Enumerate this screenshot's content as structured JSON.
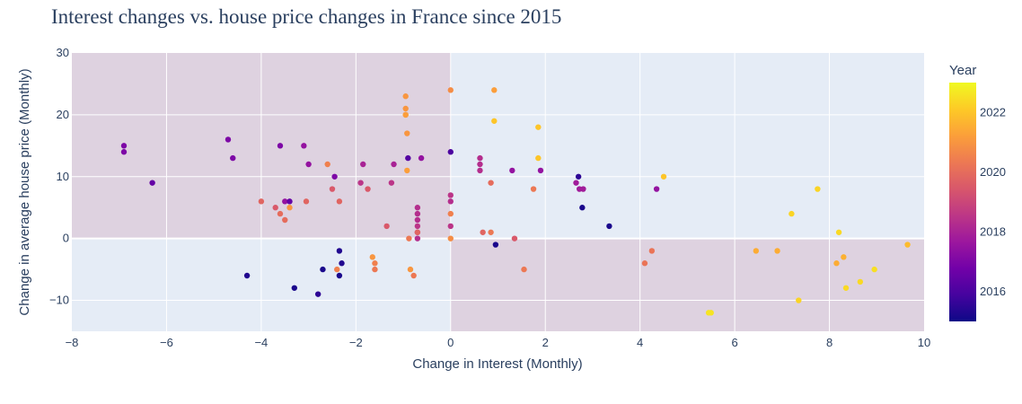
{
  "chart_data": {
    "type": "scatter",
    "title": "Interest changes vs. house price changes in France since 2015",
    "xlabel": "Change in Interest (Monthly)",
    "ylabel": "Change in average house price (Monthly)",
    "xlim": [
      -8,
      10
    ],
    "ylim": [
      -15,
      30
    ],
    "x_ticks": [
      -8,
      -6,
      -4,
      -2,
      0,
      2,
      4,
      6,
      8,
      10
    ],
    "y_ticks": [
      -10,
      0,
      10,
      20,
      30
    ],
    "grid": true,
    "shaded_quadrants": [
      "x<0,y>0",
      "x>0,y<0"
    ],
    "colorbar": {
      "title": "Year",
      "range": [
        2015,
        2023
      ],
      "ticks": [
        2016,
        2018,
        2020,
        2022
      ],
      "colors": [
        "#0d0887",
        "#46039f",
        "#7201a8",
        "#9c179e",
        "#bd3786",
        "#d8576b",
        "#ed7953",
        "#fb9f3a",
        "#fdca26",
        "#f0f921"
      ]
    },
    "points": [
      {
        "x": -6.9,
        "y": 15,
        "year": 2017
      },
      {
        "x": -6.9,
        "y": 14,
        "year": 2017
      },
      {
        "x": -6.3,
        "y": 9,
        "year": 2016.5
      },
      {
        "x": -4.7,
        "y": 16,
        "year": 2017
      },
      {
        "x": -4.6,
        "y": 13,
        "year": 2017
      },
      {
        "x": -3.6,
        "y": 15,
        "year": 2017
      },
      {
        "x": -3.1,
        "y": 15,
        "year": 2017.5
      },
      {
        "x": -3.0,
        "y": 12,
        "year": 2017.5
      },
      {
        "x": -4.3,
        "y": -6,
        "year": 2015.3
      },
      {
        "x": -4.0,
        "y": 6,
        "year": 2019.8
      },
      {
        "x": -3.7,
        "y": 5,
        "year": 2019.5
      },
      {
        "x": -3.6,
        "y": 4,
        "year": 2020
      },
      {
        "x": -3.5,
        "y": 6,
        "year": 2017.5
      },
      {
        "x": -3.5,
        "y": 3,
        "year": 2020
      },
      {
        "x": -3.4,
        "y": 5,
        "year": 2021
      },
      {
        "x": -3.4,
        "y": 6,
        "year": 2016.5
      },
      {
        "x": -3.3,
        "y": -8,
        "year": 2015.2
      },
      {
        "x": -3.05,
        "y": 6,
        "year": 2019.8
      },
      {
        "x": -2.8,
        "y": -9,
        "year": 2015.5
      },
      {
        "x": -2.7,
        "y": -5,
        "year": 2015.2
      },
      {
        "x": -2.6,
        "y": 12,
        "year": 2020.5
      },
      {
        "x": -2.5,
        "y": 8,
        "year": 2019.5
      },
      {
        "x": -2.45,
        "y": 10,
        "year": 2017
      },
      {
        "x": -2.4,
        "y": -5,
        "year": 2020.5
      },
      {
        "x": -2.35,
        "y": 6,
        "year": 2019.8
      },
      {
        "x": -2.35,
        "y": -2,
        "year": 2015.3
      },
      {
        "x": -2.35,
        "y": -6,
        "year": 2015.2
      },
      {
        "x": -2.3,
        "y": -4,
        "year": 2015.3
      },
      {
        "x": -1.9,
        "y": 9,
        "year": 2018.5
      },
      {
        "x": -1.85,
        "y": 12,
        "year": 2018
      },
      {
        "x": -1.75,
        "y": 8,
        "year": 2019.5
      },
      {
        "x": -1.65,
        "y": -3,
        "year": 2021
      },
      {
        "x": -1.6,
        "y": -4,
        "year": 2020.5
      },
      {
        "x": -1.6,
        "y": -5,
        "year": 2020.3
      },
      {
        "x": -1.35,
        "y": 2,
        "year": 2019.5
      },
      {
        "x": -1.25,
        "y": 9,
        "year": 2018.5
      },
      {
        "x": -1.2,
        "y": 12,
        "year": 2018
      },
      {
        "x": -0.95,
        "y": 23,
        "year": 2021
      },
      {
        "x": -0.95,
        "y": 21,
        "year": 2021
      },
      {
        "x": -0.95,
        "y": 20,
        "year": 2021
      },
      {
        "x": -0.95,
        "y": 20,
        "year": 2021.2
      },
      {
        "x": -0.92,
        "y": 17,
        "year": 2021
      },
      {
        "x": -0.92,
        "y": 11,
        "year": 2021.2
      },
      {
        "x": -0.9,
        "y": 13,
        "year": 2016.2
      },
      {
        "x": -0.88,
        "y": 0,
        "year": 2020.3
      },
      {
        "x": -0.85,
        "y": -5,
        "year": 2021
      },
      {
        "x": -0.78,
        "y": -6,
        "year": 2020.3
      },
      {
        "x": -0.7,
        "y": 5,
        "year": 2018.3
      },
      {
        "x": -0.7,
        "y": 4,
        "year": 2018.3
      },
      {
        "x": -0.7,
        "y": 3,
        "year": 2018.3
      },
      {
        "x": -0.7,
        "y": 2,
        "year": 2018.5
      },
      {
        "x": -0.7,
        "y": 1,
        "year": 2018.5
      },
      {
        "x": -0.7,
        "y": 1,
        "year": 2019.8
      },
      {
        "x": -0.7,
        "y": 0,
        "year": 2018.3
      },
      {
        "x": -0.62,
        "y": 13,
        "year": 2017.5
      },
      {
        "x": 0.0,
        "y": 24,
        "year": 2020.8
      },
      {
        "x": 0.0,
        "y": 14,
        "year": 2016
      },
      {
        "x": 0.0,
        "y": 7,
        "year": 2018.5
      },
      {
        "x": 0.0,
        "y": 6,
        "year": 2018.3
      },
      {
        "x": 0.0,
        "y": 4,
        "year": 2020.5
      },
      {
        "x": 0.0,
        "y": 2,
        "year": 2018.5
      },
      {
        "x": 0.0,
        "y": 0,
        "year": 2020.8
      },
      {
        "x": 0.62,
        "y": 13,
        "year": 2018.3
      },
      {
        "x": 0.62,
        "y": 12,
        "year": 2018.3
      },
      {
        "x": 0.62,
        "y": 11,
        "year": 2018.3
      },
      {
        "x": 0.68,
        "y": 1,
        "year": 2019.8
      },
      {
        "x": 0.85,
        "y": 1,
        "year": 2020.3
      },
      {
        "x": 0.85,
        "y": 9,
        "year": 2020
      },
      {
        "x": 0.92,
        "y": 24,
        "year": 2021.2
      },
      {
        "x": 0.92,
        "y": 19,
        "year": 2022
      },
      {
        "x": 0.95,
        "y": -1,
        "year": 2015.2
      },
      {
        "x": 1.3,
        "y": 11,
        "year": 2017.5
      },
      {
        "x": 1.35,
        "y": 0,
        "year": 2019.5
      },
      {
        "x": 1.55,
        "y": -5,
        "year": 2020.3
      },
      {
        "x": 1.75,
        "y": 8,
        "year": 2020.3
      },
      {
        "x": 1.85,
        "y": 13,
        "year": 2022
      },
      {
        "x": 1.85,
        "y": 18,
        "year": 2022
      },
      {
        "x": 1.9,
        "y": 11,
        "year": 2017.5
      },
      {
        "x": 2.65,
        "y": 9,
        "year": 2017.8
      },
      {
        "x": 2.7,
        "y": 10,
        "year": 2015.5
      },
      {
        "x": 2.72,
        "y": 8,
        "year": 2017.8
      },
      {
        "x": 2.78,
        "y": 5,
        "year": 2015.2
      },
      {
        "x": 2.8,
        "y": 8,
        "year": 2017.8
      },
      {
        "x": 3.35,
        "y": 2,
        "year": 2015.2
      },
      {
        "x": 4.1,
        "y": -4,
        "year": 2020.2
      },
      {
        "x": 4.25,
        "y": -2,
        "year": 2020.2
      },
      {
        "x": 4.35,
        "y": 8,
        "year": 2017.5
      },
      {
        "x": 4.5,
        "y": 10,
        "year": 2022
      },
      {
        "x": 5.45,
        "y": -12,
        "year": 2022.6
      },
      {
        "x": 5.5,
        "y": -12,
        "year": 2022.6
      },
      {
        "x": 6.45,
        "y": -2,
        "year": 2021.5
      },
      {
        "x": 6.9,
        "y": -2,
        "year": 2021.5
      },
      {
        "x": 7.2,
        "y": 4,
        "year": 2022.3
      },
      {
        "x": 7.35,
        "y": -10,
        "year": 2022.3
      },
      {
        "x": 7.75,
        "y": 8,
        "year": 2022.3
      },
      {
        "x": 8.15,
        "y": -4,
        "year": 2021.5
      },
      {
        "x": 8.2,
        "y": 1,
        "year": 2022.4
      },
      {
        "x": 8.3,
        "y": -3,
        "year": 2021.6
      },
      {
        "x": 8.35,
        "y": -8,
        "year": 2022.4
      },
      {
        "x": 8.65,
        "y": -7,
        "year": 2022.4
      },
      {
        "x": 8.95,
        "y": -5,
        "year": 2022.5
      },
      {
        "x": 9.65,
        "y": -1,
        "year": 2021.8
      }
    ]
  }
}
